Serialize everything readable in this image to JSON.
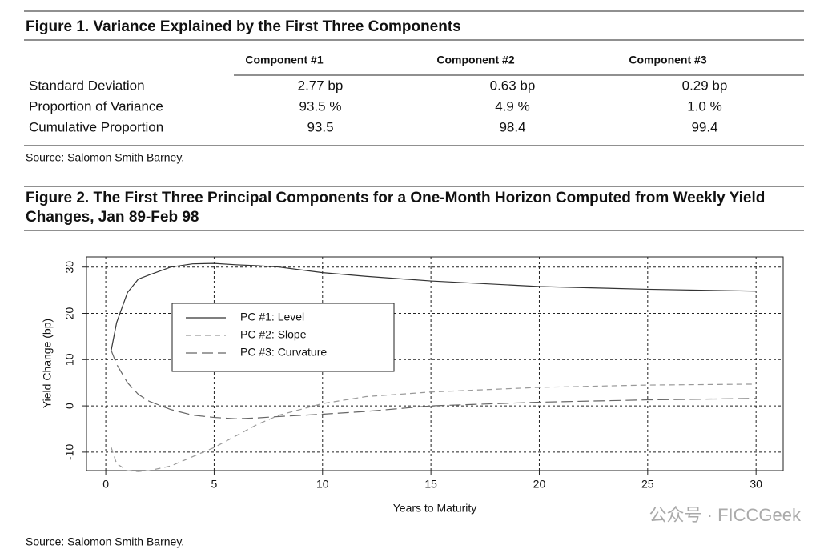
{
  "figure1": {
    "title": "Figure 1. Variance Explained by the First Three Components",
    "columns": [
      "Component #1",
      "Component #2",
      "Component #3"
    ],
    "rows": [
      {
        "label": "Standard Deviation",
        "values": [
          "2.77 bp",
          "0.63 bp",
          "0.29 bp"
        ]
      },
      {
        "label": "Proportion of Variance",
        "values": [
          "93.5 %",
          "4.9 %",
          "1.0 %"
        ]
      },
      {
        "label": "Cumulative Proportion",
        "values": [
          "93.5",
          "98.4",
          "99.4"
        ]
      }
    ],
    "source": "Source: Salomon Smith Barney."
  },
  "figure2": {
    "title_lines": [
      "Figure 2.  The First Three Principal Components for a One-Month Horizon Computed from Weekly Yield",
      "Changes, Jan 89-Feb 98"
    ],
    "source": "Source: Salomon Smith Barney."
  },
  "chart_data": {
    "type": "line",
    "x_label": "Years to Maturity",
    "y_label": "Yield Change (bp)",
    "x": [
      0.25,
      0.5,
      1,
      1.5,
      2,
      3,
      4,
      5,
      6,
      7,
      8,
      10,
      12,
      15,
      20,
      25,
      30
    ],
    "series": [
      {
        "name": "PC #1: Level",
        "color": "#333333",
        "dash": "solid",
        "values": [
          12,
          18,
          24.5,
          27.4,
          28.3,
          30,
          30.7,
          30.8,
          30.5,
          30.3,
          30,
          28.8,
          28,
          27,
          25.8,
          25.2,
          24.8
        ]
      },
      {
        "name": "PC #2: Slope",
        "color": "#999999",
        "dash": "short",
        "values": [
          -9,
          -12.5,
          -14,
          -14.2,
          -14,
          -13,
          -11,
          -9,
          -6.5,
          -4,
          -2,
          0.5,
          2,
          3,
          4,
          4.5,
          4.7
        ]
      },
      {
        "name": "PC #3: Curvature",
        "color": "#666666",
        "dash": "long",
        "values": [
          12,
          9,
          5,
          2.5,
          1,
          -0.8,
          -2,
          -2.5,
          -2.8,
          -2.6,
          -2.3,
          -1.8,
          -1.2,
          0,
          0.8,
          1.3,
          1.6
        ]
      }
    ],
    "xlim": [
      -0.89,
      31.25
    ],
    "ylim": [
      -14,
      32.2
    ],
    "xticks": [
      0,
      5,
      10,
      15,
      20,
      25,
      30
    ],
    "yticks": [
      -10,
      0,
      10,
      20,
      30
    ],
    "grid": true
  },
  "watermark": "公众号 · FICCGeek"
}
